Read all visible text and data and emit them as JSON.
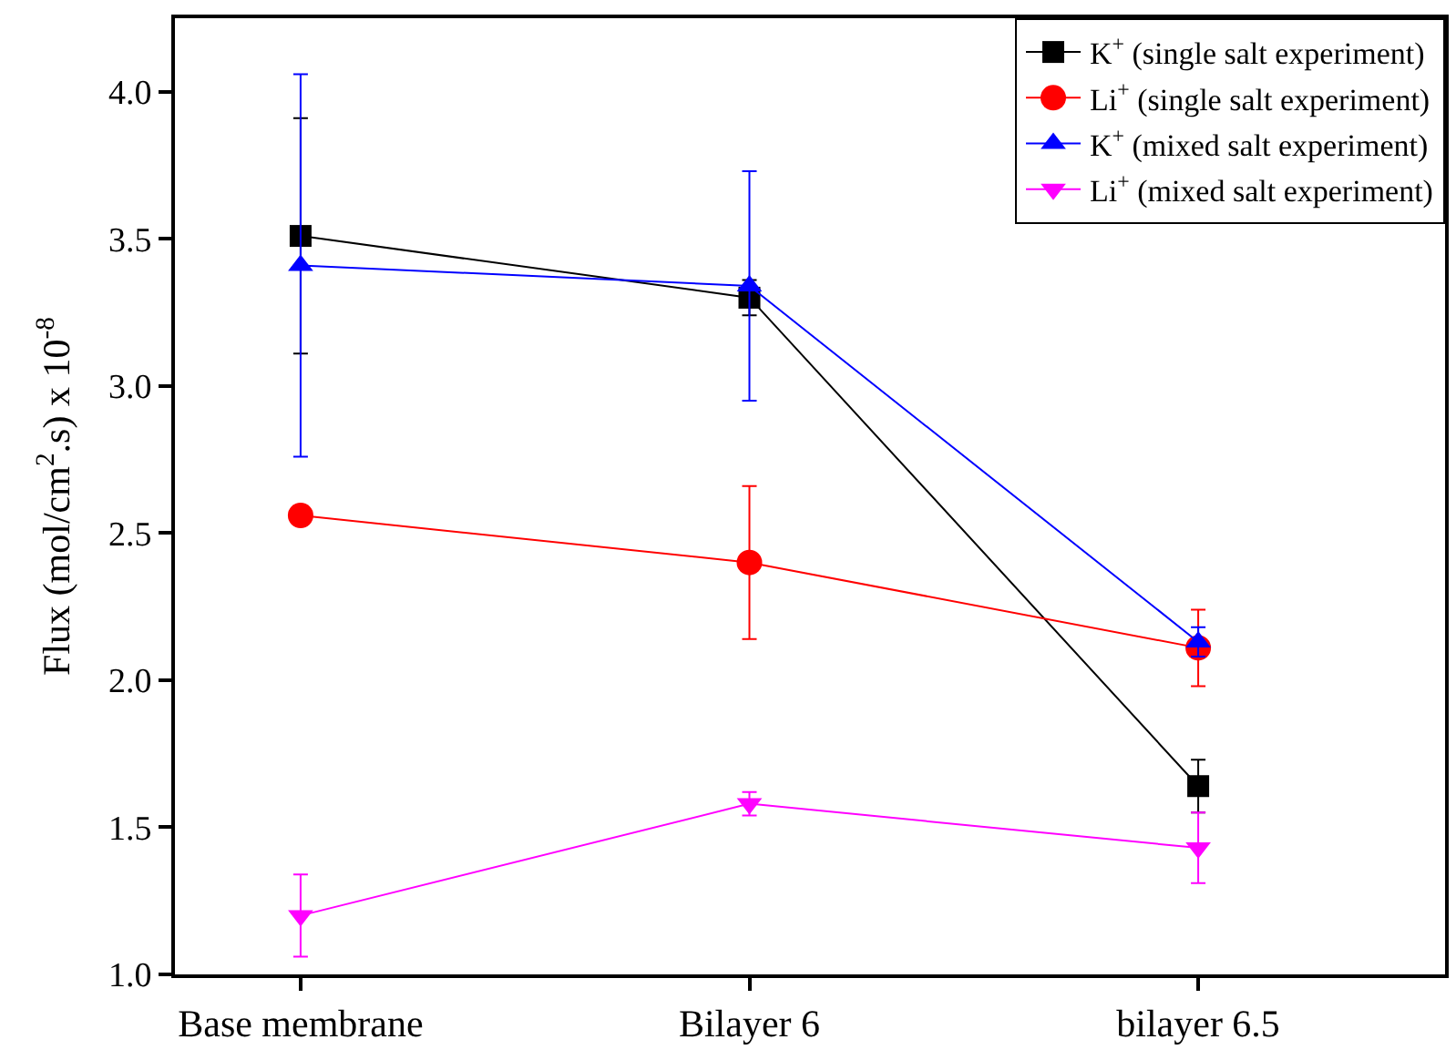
{
  "chart_data": {
    "type": "line",
    "ylabel": "Flux (mol/cm$^{2}$.s) x 10$^{-8}$",
    "categories": [
      "Base membrane",
      "Bilayer 6",
      "bilayer 6.5"
    ],
    "series": [
      {
        "name": "K$^{+}$ (single salt experiment)",
        "color": "#000000",
        "marker": "square",
        "values": [
          3.51,
          3.3,
          1.64
        ],
        "errors": [
          0.4,
          0.06,
          0.09
        ]
      },
      {
        "name": "Li$^{+}$ (single salt experiment)",
        "color": "#ff0000",
        "marker": "circle",
        "values": [
          2.56,
          2.4,
          2.11
        ],
        "errors": [
          null,
          0.26,
          0.13
        ]
      },
      {
        "name": "K$^{+}$ (mixed salt experiment)",
        "color": "#0000ff",
        "marker": "triangle",
        "values": [
          3.41,
          3.34,
          2.13
        ],
        "errors": [
          0.65,
          0.39,
          0.05
        ]
      },
      {
        "name": "Li$^{+}$ (mixed salt experiment)",
        "color": "#ff00ff",
        "marker": "triangle-down",
        "values": [
          1.2,
          1.58,
          1.43
        ],
        "errors": [
          0.14,
          0.04,
          0.12
        ]
      }
    ],
    "ylim": [
      1.0,
      4.25
    ],
    "yticks": [
      {
        "value": 1.0,
        "label": "1.0"
      },
      {
        "value": 1.5,
        "label": "1.5"
      },
      {
        "value": 2.0,
        "label": "2.0"
      },
      {
        "value": 2.5,
        "label": "2.5"
      },
      {
        "value": 3.0,
        "label": "3.0"
      },
      {
        "value": 3.5,
        "label": "3.5"
      },
      {
        "value": 4.0,
        "label": "4.0"
      }
    ],
    "legend": "top right",
    "line_style": "solid"
  }
}
